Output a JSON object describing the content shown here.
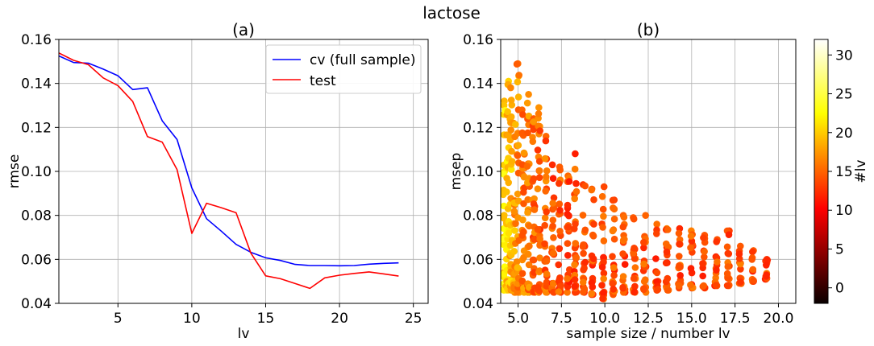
{
  "suptitle": "lactose",
  "colorbar": {
    "label": "#lv",
    "min": -2,
    "max": 32,
    "ticks": [
      0,
      5,
      10,
      15,
      20,
      25,
      30
    ],
    "tick_labels": [
      "0",
      "5",
      "10",
      "15",
      "20",
      "25",
      "30"
    ],
    "colormap": "hot"
  },
  "chart_data": [
    {
      "type": "line",
      "title": "(a)",
      "xlabel": "lv",
      "ylabel": "rmse",
      "xlim": [
        1,
        26
      ],
      "ylim": [
        0.04,
        0.16
      ],
      "xticks": [
        5,
        10,
        15,
        20,
        25
      ],
      "xtick_labels": [
        "5",
        "10",
        "15",
        "20",
        "25"
      ],
      "yticks": [
        0.04,
        0.06,
        0.08,
        0.1,
        0.12,
        0.14,
        0.16
      ],
      "ytick_labels": [
        "0.04",
        "0.06",
        "0.08",
        "0.10",
        "0.12",
        "0.14",
        "0.16"
      ],
      "grid": true,
      "legend": "top-right",
      "series": [
        {
          "name": "cv (full sample)",
          "color": "#0000ff",
          "x": [
            1,
            2,
            3,
            4,
            5,
            6,
            7,
            8,
            9,
            10,
            11,
            12,
            13,
            14,
            15,
            16,
            17,
            18,
            19,
            20,
            21,
            22,
            23,
            24
          ],
          "y": [
            0.1525,
            0.1495,
            0.1492,
            0.1465,
            0.1435,
            0.1372,
            0.138,
            0.123,
            0.1145,
            0.0925,
            0.0785,
            0.0728,
            0.0668,
            0.0632,
            0.0607,
            0.0595,
            0.0577,
            0.0572,
            0.0572,
            0.0571,
            0.0572,
            0.0578,
            0.0582,
            0.0584
          ]
        },
        {
          "name": "test",
          "color": "#ff0000",
          "x": [
            1,
            2,
            3,
            4,
            5,
            6,
            7,
            8,
            9,
            10,
            11,
            12,
            13,
            14,
            15,
            16,
            17,
            18,
            19,
            20,
            21,
            22,
            23,
            24
          ],
          "y": [
            0.1538,
            0.1505,
            0.1485,
            0.1425,
            0.139,
            0.1318,
            0.1158,
            0.1133,
            0.1008,
            0.0718,
            0.0855,
            0.0835,
            0.0812,
            0.0628,
            0.0525,
            0.0512,
            0.049,
            0.0468,
            0.0516,
            0.0528,
            0.0536,
            0.0543,
            0.0534,
            0.0524
          ]
        }
      ]
    },
    {
      "type": "scatter",
      "title": "(b)",
      "xlabel": "sample size / number lv",
      "ylabel": "msep",
      "xlim": [
        4.0,
        21.0
      ],
      "ylim": [
        0.04,
        0.16
      ],
      "xticks": [
        5.0,
        7.5,
        10.0,
        12.5,
        15.0,
        17.5,
        20.0
      ],
      "xtick_labels": [
        "5.0",
        "7.5",
        "10.0",
        "12.5",
        "15.0",
        "17.5",
        "20.0"
      ],
      "yticks": [
        0.04,
        0.06,
        0.08,
        0.1,
        0.12,
        0.14,
        0.16
      ],
      "ytick_labels": [
        "0.04",
        "0.06",
        "0.08",
        "0.10",
        "0.12",
        "0.14",
        "0.16"
      ],
      "grid": true,
      "color_by": "#lv",
      "clusters": [
        {
          "x": 4.2,
          "ymin": 0.046,
          "ymax": 0.132,
          "lv": 21
        },
        {
          "x": 4.4,
          "ymin": 0.046,
          "ymax": 0.141,
          "lv": 20
        },
        {
          "x": 4.6,
          "ymin": 0.046,
          "ymax": 0.138,
          "lv": 19
        },
        {
          "x": 4.8,
          "ymin": 0.045,
          "ymax": 0.122,
          "lv": 18
        },
        {
          "x": 5.0,
          "ymin": 0.045,
          "ymax": 0.149,
          "lv": 17
        },
        {
          "x": 5.3,
          "ymin": 0.045,
          "ymax": 0.128,
          "lv": 16
        },
        {
          "x": 5.6,
          "ymin": 0.045,
          "ymax": 0.135,
          "lv": 16
        },
        {
          "x": 5.9,
          "ymin": 0.045,
          "ymax": 0.124,
          "lv": 15
        },
        {
          "x": 6.2,
          "ymin": 0.045,
          "ymax": 0.129,
          "lv": 15
        },
        {
          "x": 6.6,
          "ymin": 0.045,
          "ymax": 0.116,
          "lv": 15
        },
        {
          "x": 7.0,
          "ymin": 0.045,
          "ymax": 0.103,
          "lv": 14
        },
        {
          "x": 7.4,
          "ymin": 0.045,
          "ymax": 0.102,
          "lv": 14
        },
        {
          "x": 7.9,
          "ymin": 0.045,
          "ymax": 0.098,
          "lv": 14
        },
        {
          "x": 8.3,
          "ymin": 0.045,
          "ymax": 0.108,
          "lv": 14
        },
        {
          "x": 8.8,
          "ymin": 0.045,
          "ymax": 0.094,
          "lv": 14
        },
        {
          "x": 9.3,
          "ymin": 0.044,
          "ymax": 0.092,
          "lv": 14
        },
        {
          "x": 9.9,
          "ymin": 0.042,
          "ymax": 0.093,
          "lv": 14
        },
        {
          "x": 10.5,
          "ymin": 0.044,
          "ymax": 0.087,
          "lv": 14
        },
        {
          "x": 11.1,
          "ymin": 0.045,
          "ymax": 0.08,
          "lv": 14
        },
        {
          "x": 11.7,
          "ymin": 0.045,
          "ymax": 0.079,
          "lv": 14
        },
        {
          "x": 12.3,
          "ymin": 0.045,
          "ymax": 0.08,
          "lv": 14
        },
        {
          "x": 13.0,
          "ymin": 0.046,
          "ymax": 0.076,
          "lv": 14
        },
        {
          "x": 13.6,
          "ymin": 0.046,
          "ymax": 0.074,
          "lv": 14
        },
        {
          "x": 14.3,
          "ymin": 0.047,
          "ymax": 0.074,
          "lv": 14
        },
        {
          "x": 15.0,
          "ymin": 0.047,
          "ymax": 0.073,
          "lv": 14
        },
        {
          "x": 15.7,
          "ymin": 0.047,
          "ymax": 0.071,
          "lv": 14
        },
        {
          "x": 16.4,
          "ymin": 0.048,
          "ymax": 0.069,
          "lv": 14
        },
        {
          "x": 17.1,
          "ymin": 0.048,
          "ymax": 0.073,
          "lv": 14
        },
        {
          "x": 17.8,
          "ymin": 0.049,
          "ymax": 0.066,
          "lv": 14
        },
        {
          "x": 18.5,
          "ymin": 0.05,
          "ymax": 0.064,
          "lv": 14
        },
        {
          "x": 19.3,
          "ymin": 0.051,
          "ymax": 0.06,
          "lv": 14
        }
      ]
    }
  ]
}
